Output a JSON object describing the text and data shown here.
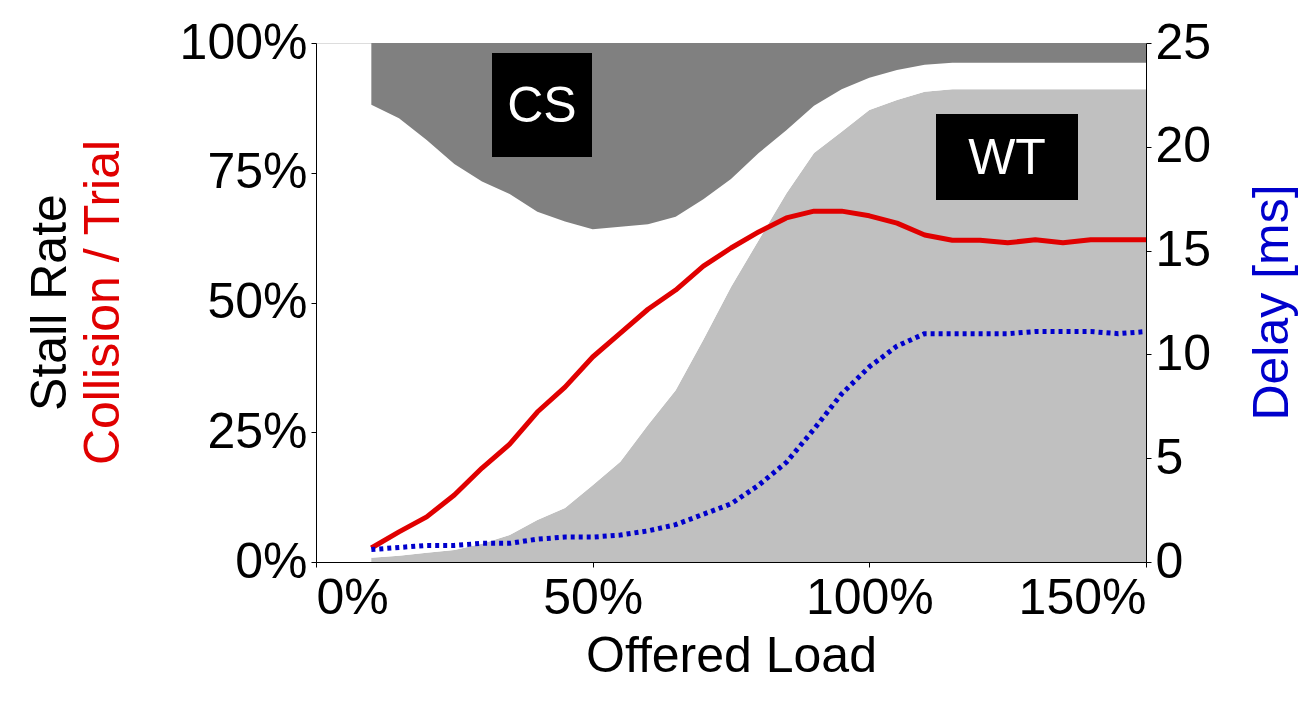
{
  "chart_data": {
    "type": "area",
    "stacked": true,
    "xlabel": "Offered Load",
    "ylabel": "Stall Rate",
    "y2label": "Delay [ms]",
    "x": [
      10,
      15,
      20,
      25,
      30,
      35,
      40,
      45,
      50,
      55,
      60,
      65,
      70,
      75,
      80,
      85,
      90,
      95,
      100,
      105,
      110,
      115,
      120,
      125,
      130,
      135,
      140,
      145,
      150
    ],
    "series": [
      {
        "color": "#c0c0c0",
        "values": [
          0.8,
          1.2,
          1.8,
          2.3,
          3.5,
          5.2,
          8.1,
          10.4,
          14.8,
          19.3,
          26.4,
          33.1,
          42.8,
          53,
          62,
          71,
          78.8,
          82.9,
          87.1,
          89,
          90.6,
          91.1,
          91.1,
          91.1,
          91.1,
          91.1,
          91.1,
          91.1,
          91.1
        ]
      },
      {
        "color": "#ffffff",
        "values": [
          87.3,
          84.3,
          79.5,
          74.4,
          69.8,
          65.7,
          59.4,
          55.2,
          49.3,
          45.3,
          38.7,
          33.4,
          27.1,
          20.8,
          16.8,
          12.2,
          9.1,
          8.2,
          6.2,
          5.8,
          5.2,
          5.1,
          5.1,
          5.1,
          5.1,
          5.1,
          5.1,
          5.1,
          5.1
        ]
      },
      {
        "color": "#808080",
        "values": [
          11.9,
          14.5,
          18.7,
          23.3,
          26.7,
          29.1,
          32.5,
          34.4,
          35.9,
          35.4,
          34.9,
          33.5,
          30.1,
          26.2,
          21.2,
          16.8,
          12.1,
          8.9,
          6.7,
          5.2,
          4.2,
          3.8,
          3.8,
          3.8,
          3.8,
          3.8,
          3.8,
          3.8,
          3.8
        ]
      },
      {
        "type": "line",
        "name": "Collision / Trial",
        "color": "#e00000",
        "line_style": "solid",
        "values": [
          2.7,
          5.8,
          8.7,
          12.9,
          18.1,
          22.7,
          28.9,
          33.7,
          39.5,
          44.1,
          48.7,
          52.4,
          57.0,
          60.5,
          63.6,
          66.3,
          67.6,
          67.6,
          66.7,
          65.3,
          63.0,
          62.0,
          62.0,
          61.5,
          62.1,
          61.5,
          62.1,
          62.1,
          62.1
        ]
      },
      {
        "type": "line",
        "axis": "y2",
        "color": "#0000cc",
        "line_style": "dotted",
        "values": [
          0.6,
          0.7,
          0.8,
          0.8,
          0.9,
          0.9,
          1.1,
          1.2,
          1.2,
          1.3,
          1.5,
          1.8,
          2.3,
          2.8,
          3.7,
          4.8,
          6.4,
          8.1,
          9.4,
          10.4,
          11.0,
          11.0,
          11.0,
          11.0,
          11.1,
          11.1,
          11.1,
          11.0,
          11.1
        ]
      }
    ],
    "xlim": [
      0,
      150
    ],
    "xticks": [
      {
        "value": 0,
        "label": "0%"
      },
      {
        "value": 50,
        "label": "50%"
      },
      {
        "value": 100,
        "label": "100%"
      },
      {
        "value": 150,
        "label": "150%"
      }
    ],
    "ylim": [
      0,
      100
    ],
    "yticks": [
      {
        "value": 0,
        "label": "0%"
      },
      {
        "value": 25,
        "label": "25%"
      },
      {
        "value": 50,
        "label": "50%"
      },
      {
        "value": 75,
        "label": "75%"
      },
      {
        "value": 100,
        "label": "100%"
      }
    ],
    "y2lim": [
      0,
      25
    ],
    "y2ticks": [
      0,
      5,
      10,
      15,
      20,
      25
    ],
    "annotations": [
      "CS",
      "WT"
    ],
    "grid": false,
    "marker": "none"
  }
}
